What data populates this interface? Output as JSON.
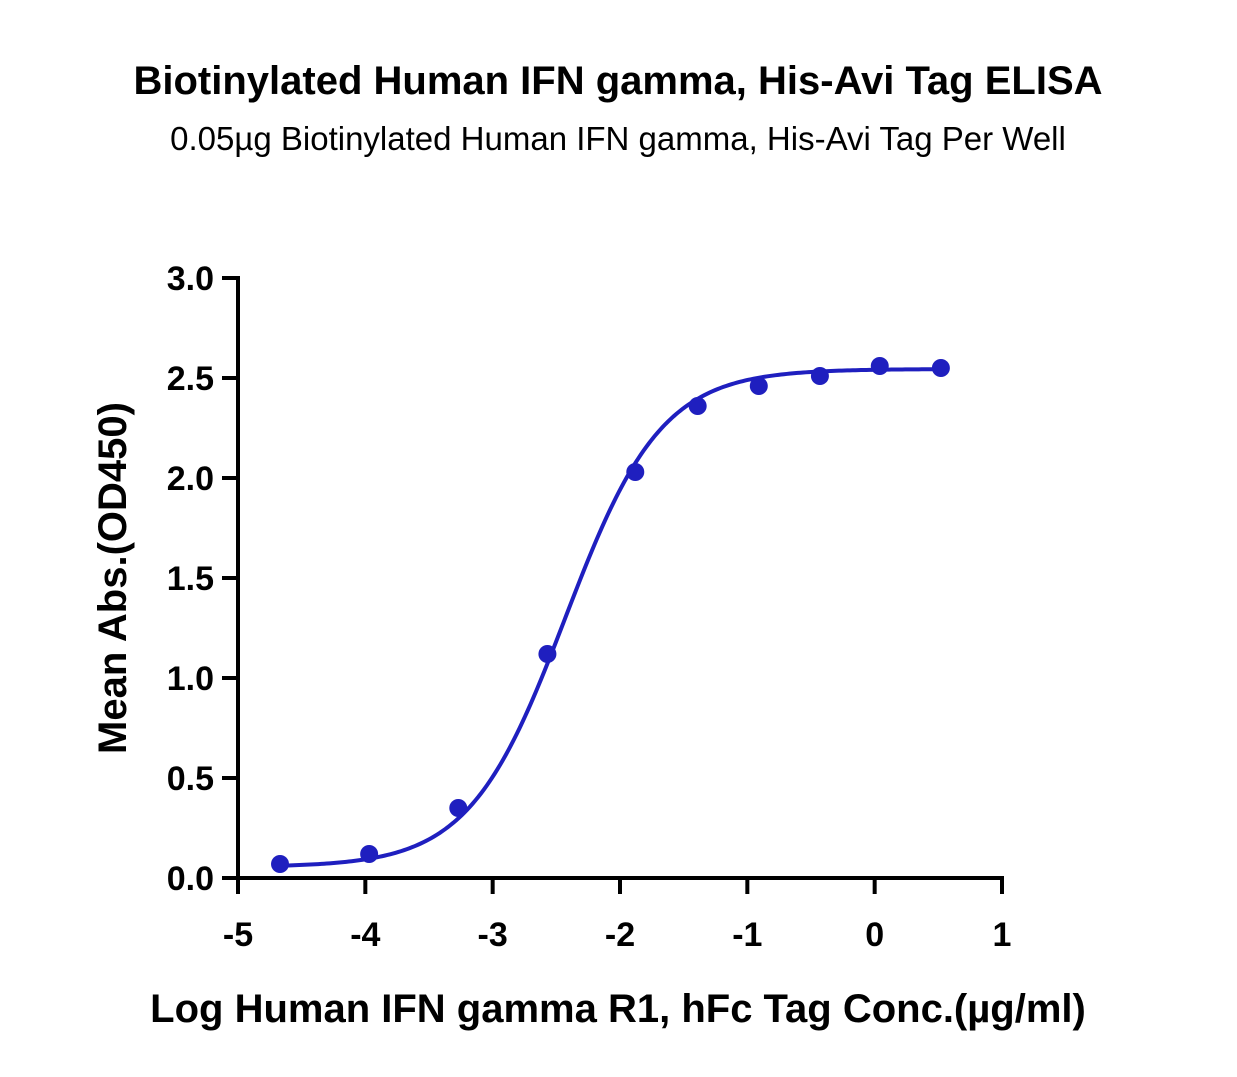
{
  "chart_data": {
    "type": "scatter",
    "title": "Biotinylated Human IFN gamma, His-Avi Tag ELISA",
    "subtitle": "0.05µg Biotinylated Human IFN gamma, His-Avi Tag Per Well",
    "xlabel": "Log Human IFN gamma R1, hFc Tag Conc.(µg/ml)",
    "ylabel": "Mean Abs.(OD450)",
    "xlim": [
      -5,
      1
    ],
    "ylim": [
      0,
      3
    ],
    "x_ticks": [
      "-5",
      "-4",
      "-3",
      "-2",
      "-1",
      "0",
      "1"
    ],
    "y_ticks": [
      "0.0",
      "0.5",
      "1.0",
      "1.5",
      "2.0",
      "2.5",
      "3.0"
    ],
    "grid": false,
    "color": "#1f1fbf",
    "series": [
      {
        "x": [
          -4.67,
          -3.97,
          -3.27,
          -2.57,
          -1.88,
          -1.39,
          -0.91,
          -0.43,
          0.04,
          0.52
        ],
        "y": [
          0.07,
          0.12,
          0.35,
          1.12,
          2.03,
          2.36,
          2.46,
          2.51,
          2.56,
          2.55
        ]
      }
    ],
    "fit": {
      "model": "4PL",
      "bottom": 0.055,
      "top": 2.545,
      "log_ec50": -2.43,
      "hill_slope": 1.15
    }
  }
}
